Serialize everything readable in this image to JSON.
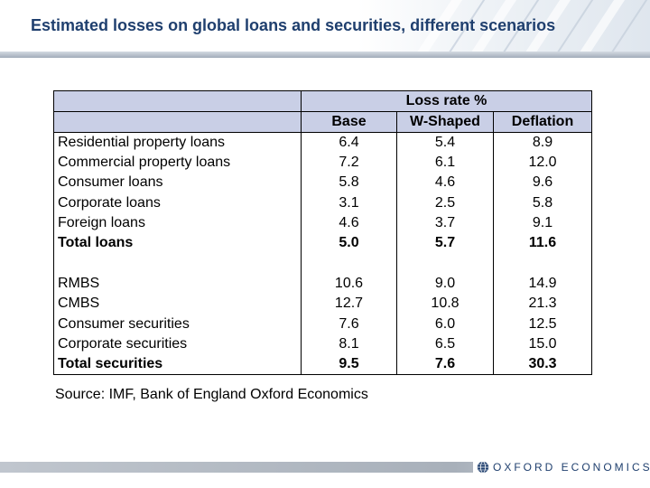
{
  "slide": {
    "title": "Estimated losses on global loans and securities, different scenarios",
    "source": "Source: IMF, Bank of England Oxford Economics"
  },
  "table": {
    "group_header": "Loss rate %",
    "columns": [
      "Base",
      "W-Shaped",
      "Deflation"
    ],
    "rows": [
      {
        "label": "Residential property loans",
        "values": [
          "6.4",
          "5.4",
          "8.9"
        ],
        "bold": false
      },
      {
        "label": "Commercial property loans",
        "values": [
          "7.2",
          "6.1",
          "12.0"
        ],
        "bold": false
      },
      {
        "label": "Consumer loans",
        "values": [
          "5.8",
          "4.6",
          "9.6"
        ],
        "bold": false
      },
      {
        "label": "Corporate loans",
        "values": [
          "3.1",
          "2.5",
          "5.8"
        ],
        "bold": false
      },
      {
        "label": "Foreign loans",
        "values": [
          "4.6",
          "3.7",
          "9.1"
        ],
        "bold": false
      },
      {
        "label": "Total loans",
        "values": [
          "5.0",
          "5.7",
          "11.6"
        ],
        "bold": true
      },
      {
        "label": "RMBS",
        "values": [
          "10.6",
          "9.0",
          "14.9"
        ],
        "bold": false
      },
      {
        "label": "CMBS",
        "values": [
          "12.7",
          "10.8",
          "21.3"
        ],
        "bold": false
      },
      {
        "label": "Consumer securities",
        "values": [
          "7.6",
          "6.0",
          "12.5"
        ],
        "bold": false
      },
      {
        "label": "Corporate securities",
        "values": [
          "8.1",
          "6.5",
          "15.0"
        ],
        "bold": false
      },
      {
        "label": "Total securities",
        "values": [
          "9.5",
          "7.6",
          "30.3"
        ],
        "bold": true
      }
    ]
  },
  "footer": {
    "logo_text": "OXFORD ECONOMICS",
    "logo_icon": "globe-icon"
  },
  "colors": {
    "title": "#1f3f6e",
    "header_fill": "#c9cfe6",
    "logo": "#1f3f6e"
  }
}
